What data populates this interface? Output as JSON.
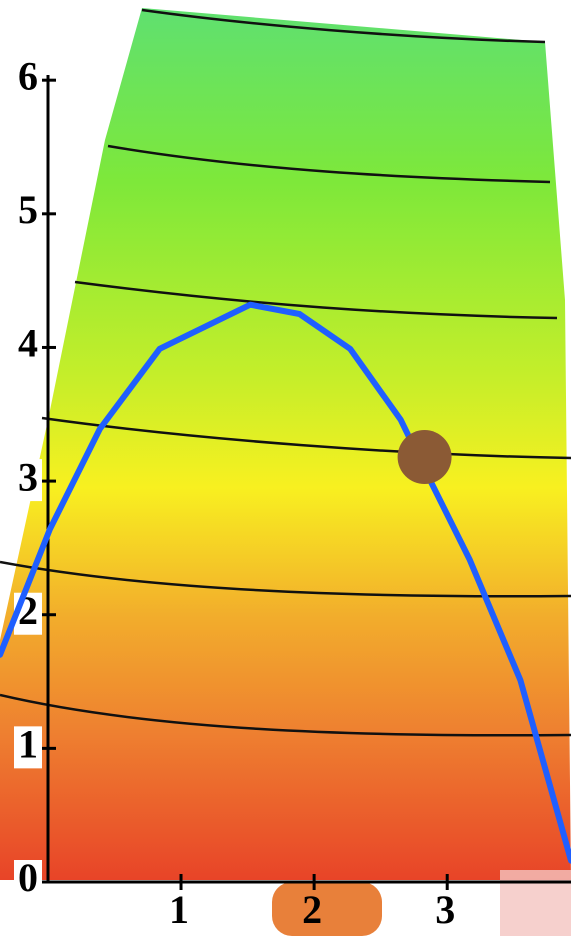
{
  "chart_data": {
    "type": "line",
    "x": [
      -0.36,
      0.015,
      0.39,
      0.84,
      1.52,
      1.89,
      2.27,
      2.65,
      2.87,
      3.17,
      3.55,
      3.93
    ],
    "values": [
      1.7,
      2.64,
      3.39,
      3.99,
      4.32,
      4.25,
      3.99,
      3.46,
      3.01,
      2.41,
      1.51,
      0.16
    ],
    "color": "#1f5fff",
    "point": {
      "x": 2.83,
      "y": 3.18,
      "color": "#8b5a35"
    },
    "xlim": [
      -0.36,
      3.93
    ],
    "ylim": [
      0,
      6.6
    ],
    "xticks": [
      1,
      2,
      3
    ],
    "yticks": [
      0,
      1,
      2,
      3,
      4,
      5,
      6
    ]
  }
}
